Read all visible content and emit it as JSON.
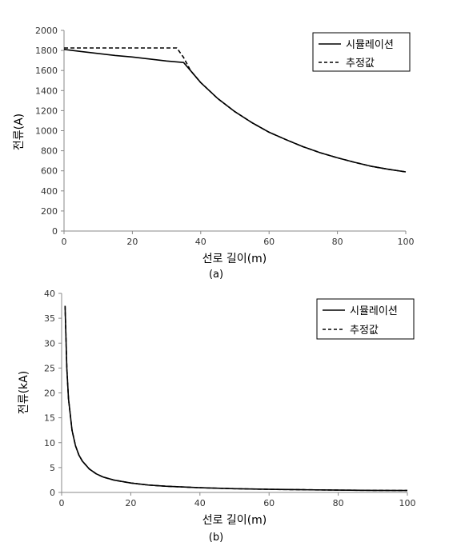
{
  "chart_data": [
    {
      "type": "line",
      "panel_label": "(a)",
      "xlabel": "선로 길이(m)",
      "ylabel": "전류(A)",
      "xlim": [
        0,
        100
      ],
      "ylim": [
        0,
        2000
      ],
      "x_ticks": [
        0,
        20,
        40,
        60,
        80,
        100
      ],
      "y_ticks": [
        0,
        200,
        400,
        600,
        800,
        1000,
        1200,
        1400,
        1600,
        1800,
        2000
      ],
      "grid": false,
      "legend_position": "top-right",
      "series": [
        {
          "name": "시뮬레이션",
          "style": "solid",
          "color": "#000000",
          "x": [
            0,
            5,
            10,
            15,
            20,
            25,
            30,
            35,
            37,
            40,
            45,
            50,
            55,
            60,
            65,
            70,
            75,
            80,
            85,
            90,
            95,
            100
          ],
          "y": [
            1810,
            1790,
            1770,
            1750,
            1735,
            1715,
            1695,
            1680,
            1600,
            1480,
            1320,
            1190,
            1080,
            985,
            910,
            840,
            780,
            730,
            685,
            645,
            615,
            590
          ]
        },
        {
          "name": "추정값",
          "style": "dashed",
          "color": "#000000",
          "x": [
            0,
            5,
            10,
            15,
            20,
            25,
            30,
            33,
            35,
            37,
            40,
            45,
            50,
            55,
            60,
            65,
            70,
            75,
            80,
            85,
            90,
            95,
            100
          ],
          "y": [
            1825,
            1825,
            1825,
            1825,
            1825,
            1825,
            1825,
            1825,
            1730,
            1600,
            1480,
            1320,
            1190,
            1080,
            985,
            910,
            840,
            780,
            730,
            685,
            645,
            615,
            590
          ]
        }
      ]
    },
    {
      "type": "line",
      "panel_label": "(b)",
      "xlabel": "선로 길이(m)",
      "ylabel": "전류(kA)",
      "xlim": [
        0,
        100
      ],
      "ylim": [
        0,
        40
      ],
      "x_ticks": [
        0,
        20,
        40,
        60,
        80,
        100
      ],
      "y_ticks": [
        0,
        5,
        10,
        15,
        20,
        25,
        30,
        35,
        40
      ],
      "grid": false,
      "legend_position": "top-right",
      "series": [
        {
          "name": "시뮬레이션",
          "style": "solid",
          "color": "#000000",
          "x": [
            1,
            1.5,
            2,
            3,
            4,
            5,
            6,
            8,
            10,
            12,
            15,
            20,
            25,
            30,
            40,
            50,
            60,
            70,
            80,
            90,
            100
          ],
          "y": [
            37.5,
            25,
            18.8,
            12.5,
            9.4,
            7.5,
            6.3,
            4.7,
            3.75,
            3.1,
            2.5,
            1.9,
            1.5,
            1.25,
            0.94,
            0.75,
            0.63,
            0.54,
            0.47,
            0.42,
            0.38
          ]
        },
        {
          "name": "추정값",
          "style": "dashed",
          "color": "#000000",
          "x": [
            1,
            1.5,
            2,
            3,
            4,
            5,
            6,
            8,
            10,
            12,
            15,
            20,
            25,
            30,
            40,
            50,
            60,
            70,
            80,
            90,
            100
          ],
          "y": [
            37.5,
            25,
            18.8,
            12.5,
            9.4,
            7.5,
            6.3,
            4.7,
            3.75,
            3.1,
            2.5,
            1.9,
            1.5,
            1.25,
            0.94,
            0.75,
            0.63,
            0.54,
            0.47,
            0.42,
            0.38
          ]
        }
      ]
    }
  ]
}
